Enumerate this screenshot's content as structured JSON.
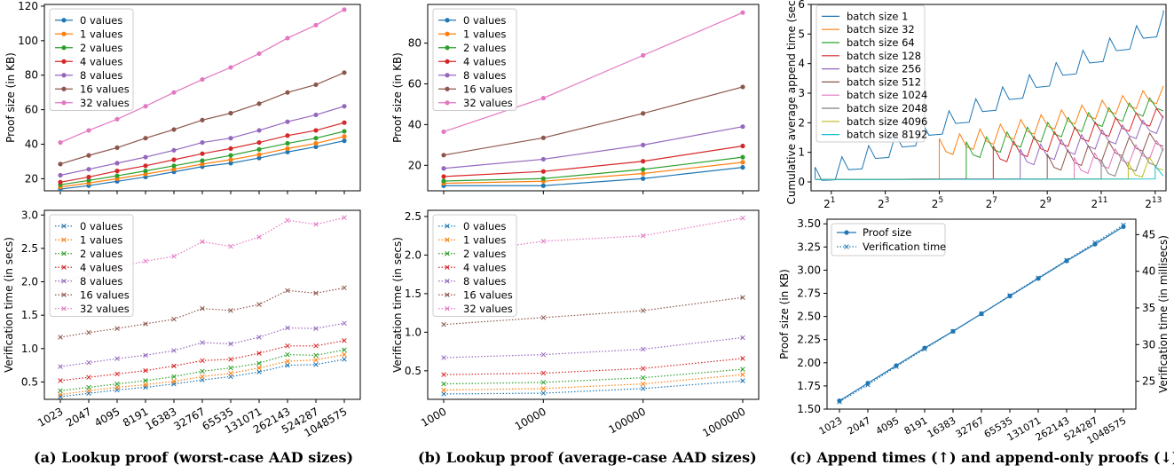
{
  "palette": [
    "#1f77b4",
    "#ff7f0e",
    "#2ca02c",
    "#d62728",
    "#9467bd",
    "#8c564b",
    "#e377c2",
    "#7f7f7f",
    "#bcbd22",
    "#17becf"
  ],
  "captions": {
    "a": "(a) Lookup proof (worst-case AAD sizes)",
    "b": "(b) Lookup proof (average-case AAD sizes)",
    "c": "(c) Append times (↑) and append-only proofs (↓)"
  },
  "chart_data": [
    {
      "id": "a_top",
      "type": "line",
      "ylabel": "Proof size (in KB)",
      "categories": [
        "1023",
        "2047",
        "4095",
        "8191",
        "16383",
        "32767",
        "65535",
        "131071",
        "262143",
        "524287",
        "1048575"
      ],
      "ylim": [
        13,
        121
      ],
      "yticks": [
        20,
        40,
        60,
        80,
        100,
        120
      ],
      "marker": "circle",
      "linestyle": "solid",
      "legend": "top-left",
      "series": [
        {
          "name": "0 values",
          "values": [
            14,
            16,
            18.5,
            21,
            24,
            27,
            29,
            32,
            35.5,
            38.5,
            42
          ]
        },
        {
          "name": "1 values",
          "values": [
            15.2,
            17.5,
            20,
            22.7,
            25.5,
            28.5,
            31,
            34,
            37.5,
            40.5,
            44.5
          ]
        },
        {
          "name": "2 values",
          "values": [
            16.5,
            19,
            21.7,
            24.5,
            27.5,
            30.5,
            33.5,
            37,
            40.5,
            43.5,
            47.5
          ]
        },
        {
          "name": "4 values",
          "values": [
            18,
            21,
            24.5,
            27.5,
            31,
            34.5,
            37.5,
            41,
            45,
            48,
            52.5
          ]
        },
        {
          "name": "8 values",
          "values": [
            22,
            25.5,
            29,
            32.5,
            36.5,
            41,
            43.5,
            48,
            53,
            57,
            62
          ]
        },
        {
          "name": "16 values",
          "values": [
            28.5,
            33.5,
            38,
            43.5,
            48.5,
            54,
            58,
            63.5,
            70,
            74.5,
            81.5
          ]
        },
        {
          "name": "32 values",
          "values": [
            41,
            48,
            54.5,
            62,
            70,
            77.5,
            84.5,
            92.5,
            101.5,
            109,
            118
          ]
        }
      ]
    },
    {
      "id": "a_bottom",
      "type": "line",
      "ylabel": "Verification time (in secs)",
      "xtick_labels": [
        "1023",
        "2047",
        "4095",
        "8191",
        "16383",
        "32767",
        "65535",
        "131071",
        "262143",
        "524287",
        "1048575"
      ],
      "ylim": [
        0.24,
        3.07
      ],
      "yticks": [
        0.5,
        1.0,
        1.5,
        2.0,
        2.5,
        3.0
      ],
      "ytick_labels": [
        "0.5",
        "1.0",
        "1.5",
        "2.0",
        "2.5",
        "3.0"
      ],
      "marker": "x",
      "linestyle": "dotted",
      "legend": "top-left",
      "series": [
        {
          "name": "0 values",
          "values": [
            0.28,
            0.33,
            0.38,
            0.42,
            0.47,
            0.53,
            0.58,
            0.65,
            0.75,
            0.76,
            0.84
          ]
        },
        {
          "name": "1 values",
          "values": [
            0.31,
            0.37,
            0.42,
            0.46,
            0.51,
            0.58,
            0.63,
            0.71,
            0.81,
            0.83,
            0.91
          ]
        },
        {
          "name": "2 values",
          "values": [
            0.37,
            0.42,
            0.47,
            0.52,
            0.58,
            0.66,
            0.71,
            0.78,
            0.91,
            0.9,
            0.98
          ]
        },
        {
          "name": "4 values",
          "values": [
            0.52,
            0.57,
            0.62,
            0.67,
            0.74,
            0.82,
            0.84,
            0.93,
            1.04,
            1.04,
            1.12
          ]
        },
        {
          "name": "8 values",
          "values": [
            0.73,
            0.79,
            0.85,
            0.9,
            0.97,
            1.09,
            1.07,
            1.17,
            1.31,
            1.3,
            1.38
          ]
        },
        {
          "name": "16 values",
          "values": [
            1.17,
            1.24,
            1.3,
            1.37,
            1.44,
            1.6,
            1.57,
            1.66,
            1.87,
            1.83,
            1.91
          ]
        },
        {
          "name": "32 values",
          "values": [
            2.0,
            2.11,
            2.22,
            2.31,
            2.38,
            2.6,
            2.53,
            2.67,
            2.92,
            2.86,
            2.96
          ]
        }
      ]
    },
    {
      "id": "b_top",
      "type": "line",
      "ylabel": "Proof size (in KB)",
      "categories": [
        "1000",
        "10000",
        "100000",
        "1000000"
      ],
      "ylim": [
        7.5,
        99
      ],
      "yticks": [
        20,
        40,
        60,
        80
      ],
      "marker": "circle",
      "linestyle": "solid",
      "legend": "top-left",
      "series": [
        {
          "name": "0 values",
          "values": [
            10,
            10,
            13.5,
            19
          ]
        },
        {
          "name": "1 values",
          "values": [
            11.2,
            12.2,
            16,
            21.5
          ]
        },
        {
          "name": "2 values",
          "values": [
            12.3,
            13.5,
            18,
            24
          ]
        },
        {
          "name": "4 values",
          "values": [
            14.5,
            17,
            22,
            29.5
          ]
        },
        {
          "name": "8 values",
          "values": [
            18.5,
            23,
            30,
            39
          ]
        },
        {
          "name": "16 values",
          "values": [
            25,
            33.5,
            45.5,
            58.5
          ]
        },
        {
          "name": "32 values",
          "values": [
            36.5,
            53,
            74,
            95
          ]
        }
      ]
    },
    {
      "id": "b_bottom",
      "type": "line",
      "ylabel": "Verification time (in secs)",
      "xtick_labels": [
        "1000",
        "10000",
        "100000",
        "1000000"
      ],
      "ylim": [
        0.13,
        2.58
      ],
      "yticks": [
        0.5,
        1.0,
        1.5,
        2.0,
        2.5
      ],
      "ytick_labels": [
        "0.5",
        "1.0",
        "1.5",
        "2.0",
        "2.5"
      ],
      "marker": "x",
      "linestyle": "dotted",
      "legend": "top-left",
      "series": [
        {
          "name": "0 values",
          "values": [
            0.2,
            0.21,
            0.27,
            0.37
          ]
        },
        {
          "name": "1 values",
          "values": [
            0.25,
            0.27,
            0.33,
            0.45
          ]
        },
        {
          "name": "2 values",
          "values": [
            0.33,
            0.35,
            0.41,
            0.52
          ]
        },
        {
          "name": "4 values",
          "values": [
            0.45,
            0.47,
            0.53,
            0.66
          ]
        },
        {
          "name": "8 values",
          "values": [
            0.67,
            0.71,
            0.78,
            0.93
          ]
        },
        {
          "name": "16 values",
          "values": [
            1.1,
            1.19,
            1.28,
            1.45
          ]
        },
        {
          "name": "32 values",
          "values": [
            2.0,
            2.18,
            2.25,
            2.48
          ]
        }
      ]
    },
    {
      "id": "c_top",
      "type": "line",
      "ylabel": "Cumulative average append time (secs)",
      "xscale": "log2",
      "xlim": [
        0.25,
        13.4
      ],
      "xtick_exponents": [
        1,
        3,
        5,
        7,
        9,
        11,
        13
      ],
      "xtick_base": "2",
      "ylim": [
        -0.3,
        6.0
      ],
      "yticks": [
        0,
        1,
        2,
        3,
        4,
        5,
        6
      ],
      "linestyle": "solid",
      "legend": "top-left",
      "series": [
        {
          "name": "batch size 1",
          "start_exponent": 0,
          "end_value": 5.2,
          "sawtooth_peak": 5.8
        },
        {
          "name": "batch size 32",
          "start_exponent": 5,
          "end_value": 2.9,
          "sawtooth_peak": 3.4
        },
        {
          "name": "batch size 64",
          "start_exponent": 6,
          "end_value": 2.6,
          "sawtooth_peak": 2.8
        },
        {
          "name": "batch size 128",
          "start_exponent": 7,
          "end_value": 2.2,
          "sawtooth_peak": 2.3
        },
        {
          "name": "batch size 256",
          "start_exponent": 8,
          "end_value": 1.9,
          "sawtooth_peak": 1.95
        },
        {
          "name": "batch size 512",
          "start_exponent": 9,
          "end_value": 1.4,
          "sawtooth_peak": 1.5
        },
        {
          "name": "batch size 1024",
          "start_exponent": 10,
          "end_value": 1.1,
          "sawtooth_peak": 1.2
        },
        {
          "name": "batch size 2048",
          "start_exponent": 11,
          "end_value": 0.8,
          "sawtooth_peak": 0.9
        },
        {
          "name": "batch size 4096",
          "start_exponent": 12,
          "end_value": 0.6,
          "sawtooth_peak": 0.65
        },
        {
          "name": "batch size 8192",
          "start_exponent": 13,
          "end_value": 0.25,
          "sawtooth_peak": 0.3
        }
      ]
    },
    {
      "id": "c_bottom",
      "type": "line",
      "categories": [
        "1023",
        "2047",
        "4095",
        "8191",
        "16383",
        "32767",
        "65535",
        "131071",
        "262143",
        "524287",
        "1048575"
      ],
      "ylabel": "Proof size (in KB)",
      "ylim": [
        1.5,
        3.55
      ],
      "yticks": [
        1.5,
        1.75,
        2.0,
        2.25,
        2.5,
        2.75,
        3.0,
        3.25,
        3.5
      ],
      "ytick_labels": [
        "1.50",
        "1.75",
        "2.00",
        "2.25",
        "2.50",
        "2.75",
        "3.00",
        "3.25",
        "3.50"
      ],
      "ylabel_right": "Verification time (in millisecs)",
      "ylim_right": [
        21.2,
        47.1
      ],
      "yticks_right": [
        25,
        30,
        35,
        40,
        45
      ],
      "legend": "top-left",
      "series": [
        {
          "name": "Proof size",
          "axis": "left",
          "marker": "circle",
          "linestyle": "solid",
          "values": [
            1.59,
            1.78,
            1.97,
            2.16,
            2.34,
            2.53,
            2.72,
            2.91,
            3.1,
            3.28,
            3.47
          ]
        },
        {
          "name": "Verification time",
          "axis": "right",
          "marker": "x",
          "linestyle": "dotted",
          "values": [
            22.2,
            24.5,
            27.0,
            29.4,
            31.8,
            34.2,
            36.7,
            39.1,
            41.5,
            43.9,
            46.3
          ]
        }
      ]
    }
  ]
}
